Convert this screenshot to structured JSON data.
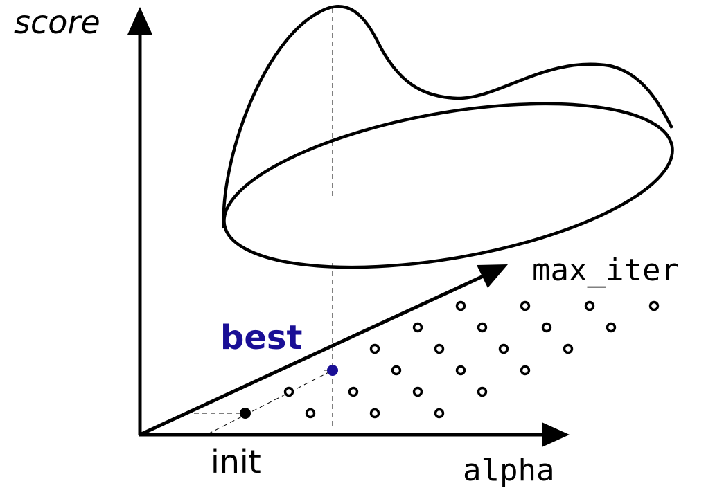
{
  "labels": {
    "y_axis": "score",
    "x_axis": "alpha",
    "z_axis": "max_iter",
    "init": "init",
    "best": "best"
  },
  "colors": {
    "ink": "#000000",
    "best": "#1a0f96",
    "background": "#ffffff"
  },
  "icons": {
    "axis_arrowhead": "filled-triangle-arrowhead",
    "grid_point": "hollow-circle",
    "init_point": "filled-black-dot",
    "best_point": "filled-blue-dot"
  }
}
